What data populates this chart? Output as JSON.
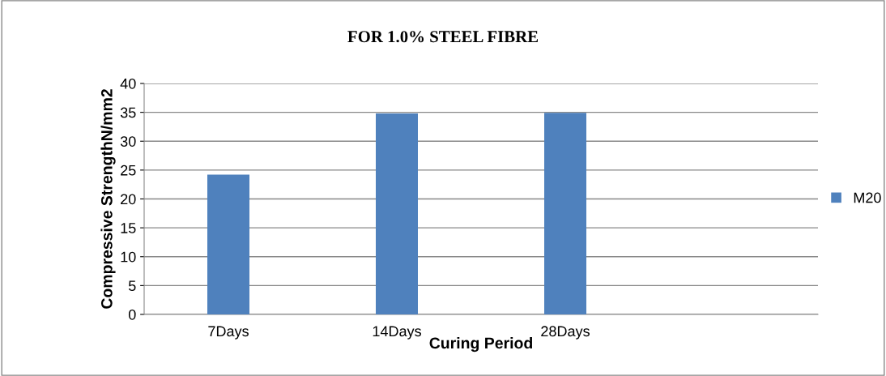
{
  "chart_data": {
    "type": "bar",
    "title": "FOR 1.0% STEEL FIBRE",
    "xlabel": "Curing Period",
    "ylabel": "Compressive StrengthN/mm2",
    "categories": [
      "7Days",
      "14Days",
      "28Days",
      null
    ],
    "series": [
      {
        "name": "M20",
        "color": "#4f81bd",
        "values": [
          24.2,
          34.8,
          34.9,
          null
        ]
      }
    ],
    "ylim": [
      0,
      40
    ],
    "yticks": [
      0,
      5,
      10,
      15,
      20,
      25,
      30,
      35,
      40
    ],
    "grid": "y",
    "legend": "right"
  }
}
